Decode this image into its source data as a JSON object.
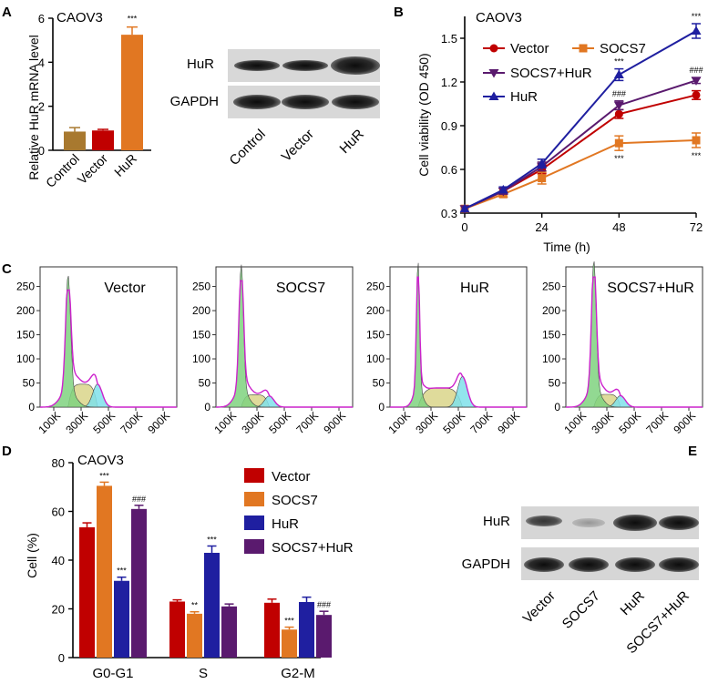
{
  "figure": {
    "panel_labels": [
      "A",
      "B",
      "C",
      "D",
      "E"
    ],
    "colors": {
      "control": "#a8792f",
      "vector": "#c00000",
      "socs7": "#e17722",
      "hur": "#1f1fa0",
      "socs7_hur": "#5a1a6e",
      "hur_line": "#1f1fa0"
    }
  },
  "panelA": {
    "cell_line": "CAOV3",
    "chart_data": {
      "type": "bar",
      "title": "CAOV3",
      "ylabel": "Relative HuR mRNA level",
      "xlabel": "",
      "categories": [
        "Control",
        "Vector",
        "HuR"
      ],
      "values": [
        0.85,
        0.9,
        5.25
      ],
      "errors": [
        0.18,
        0.05,
        0.35
      ],
      "ylim": [
        0,
        6
      ],
      "yticks": [
        "0",
        "2",
        "4",
        "6"
      ],
      "annotations": [
        {
          "category": "HuR",
          "text": "***"
        }
      ]
    },
    "blot": {
      "rows": [
        "HuR",
        "GAPDH"
      ],
      "lanes": [
        "Control",
        "Vector",
        "HuR"
      ]
    }
  },
  "panelB": {
    "chart_data": {
      "type": "line",
      "title": "CAOV3",
      "xlabel": "Time (h)",
      "ylabel": "Cell viability (OD 450)",
      "x": [
        0,
        12,
        24,
        48,
        72
      ],
      "xticks": [
        "0",
        "24",
        "48",
        "72"
      ],
      "xlim": [
        0,
        72
      ],
      "ylim": [
        0.3,
        1.65
      ],
      "yticks": [
        "0.3",
        "0.6",
        "0.9",
        "1.2",
        "1.5"
      ],
      "series": [
        {
          "name": "Vector",
          "marker": "circle",
          "values": [
            0.33,
            0.45,
            0.6,
            0.98,
            1.11
          ],
          "errors": [
            0.01,
            0.02,
            0.03,
            0.03,
            0.03
          ]
        },
        {
          "name": "SOCS7",
          "marker": "square",
          "values": [
            0.33,
            0.43,
            0.54,
            0.78,
            0.8
          ],
          "errors": [
            0.01,
            0.02,
            0.04,
            0.05,
            0.05
          ]
        },
        {
          "name": "SOCS7+HuR",
          "marker": "triangle-down",
          "values": [
            0.33,
            0.45,
            0.62,
            1.04,
            1.21
          ],
          "errors": [
            0.01,
            0.02,
            0.03,
            0.03,
            0.02
          ]
        },
        {
          "name": "HuR",
          "marker": "triangle-up",
          "values": [
            0.33,
            0.46,
            0.64,
            1.25,
            1.55
          ],
          "errors": [
            0.01,
            0.02,
            0.03,
            0.04,
            0.05
          ]
        }
      ],
      "legend": [
        "Vector",
        "SOCS7",
        "SOCS7+HuR",
        "HuR"
      ],
      "annotations": [
        "***",
        "###",
        "***",
        "***",
        "###",
        "***"
      ]
    }
  },
  "panelC": {
    "histograms": [
      {
        "title": "Vector"
      },
      {
        "title": "SOCS7"
      },
      {
        "title": "HuR"
      },
      {
        "title": "SOCS7+HuR"
      }
    ],
    "yticks": [
      "0",
      "50",
      "100",
      "150",
      "200",
      "250"
    ],
    "xticks": [
      "100K",
      "300K",
      "500K",
      "700K",
      "900K"
    ]
  },
  "panelD": {
    "chart_data": {
      "type": "bar",
      "title": "CAOV3",
      "ylabel": "Cell (%)",
      "xlabel": "",
      "categories": [
        "G0-G1",
        "S",
        "G2-M"
      ],
      "ylim": [
        0,
        80
      ],
      "yticks": [
        "0",
        "20",
        "40",
        "60",
        "80"
      ],
      "series": [
        {
          "name": "Vector",
          "values": [
            53.5,
            23.0,
            22.5
          ],
          "errors": [
            1.8,
            0.7,
            1.5
          ]
        },
        {
          "name": "SOCS7",
          "values": [
            70.5,
            18.0,
            11.5
          ],
          "errors": [
            1.5,
            0.8,
            1.0
          ]
        },
        {
          "name": "HuR",
          "values": [
            31.5,
            43.0,
            22.8
          ],
          "errors": [
            1.5,
            2.8,
            2.0
          ]
        },
        {
          "name": "SOCS7+HuR",
          "values": [
            61.0,
            21.0,
            17.5
          ],
          "errors": [
            1.5,
            1.0,
            1.5
          ]
        }
      ],
      "legend": [
        "Vector",
        "SOCS7",
        "HuR",
        "SOCS7+HuR"
      ],
      "annotations": [
        "***",
        "***",
        "###",
        "**",
        "***",
        "***",
        "###"
      ]
    }
  },
  "panelE": {
    "rows": [
      "HuR",
      "GAPDH"
    ],
    "lanes": [
      "Vector",
      "SOCS7",
      "HuR",
      "SOCS7+HuR"
    ]
  }
}
